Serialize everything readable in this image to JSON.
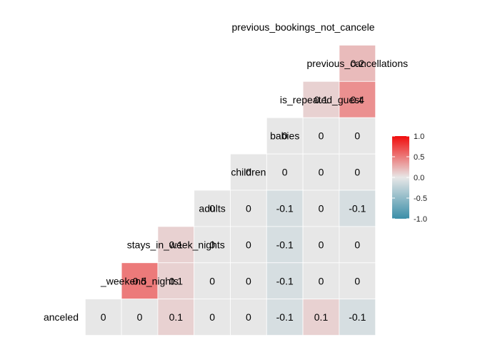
{
  "chart_data": {
    "type": "heatmap",
    "title": "",
    "variables": [
      "canceled",
      "_weekend_nights",
      "stays_in_week_nights",
      "adults",
      "children",
      "babies",
      "is_repeated_guest",
      "previous_cancellations",
      "previous_bookings_not_canceled"
    ],
    "row_labels": [
      "previous_bookings_not_canceled",
      "previous_cancellations",
      "is_repeated_guest",
      "babies",
      "children",
      "adults",
      "stays_in_week_nights",
      "_weekend_nights",
      "canceled"
    ],
    "rows": [
      {
        "values": []
      },
      {
        "values": [
          0.2
        ]
      },
      {
        "values": [
          0.1,
          0.4
        ]
      },
      {
        "values": [
          0,
          0,
          0
        ]
      },
      {
        "values": [
          0,
          0,
          0,
          0
        ]
      },
      {
        "values": [
          0,
          0,
          -0.1,
          0,
          -0.1
        ]
      },
      {
        "values": [
          0.1,
          0,
          0,
          -0.1,
          0,
          0
        ]
      },
      {
        "values": [
          0.5,
          0.1,
          0,
          0,
          -0.1,
          0,
          0
        ]
      },
      {
        "values": [
          0,
          0,
          0.1,
          0,
          0,
          -0.1,
          0.1,
          -0.1
        ]
      }
    ],
    "label_text": {
      "previous_bookings_not_canceled": "previous_bookings_not_cancele",
      "canceled": "anceled"
    },
    "legend": {
      "position": "right",
      "ticks": [
        "1.0",
        "0.5",
        "0.0",
        "-0.5",
        "-1.0"
      ],
      "tick_values": [
        1,
        0.5,
        0,
        -0.5,
        -1
      ],
      "low_color": "#3A8EA8",
      "mid_color": "#E7E7E7",
      "high_color": "#F00D0D",
      "range": [
        -1,
        1
      ]
    },
    "grid": false
  }
}
